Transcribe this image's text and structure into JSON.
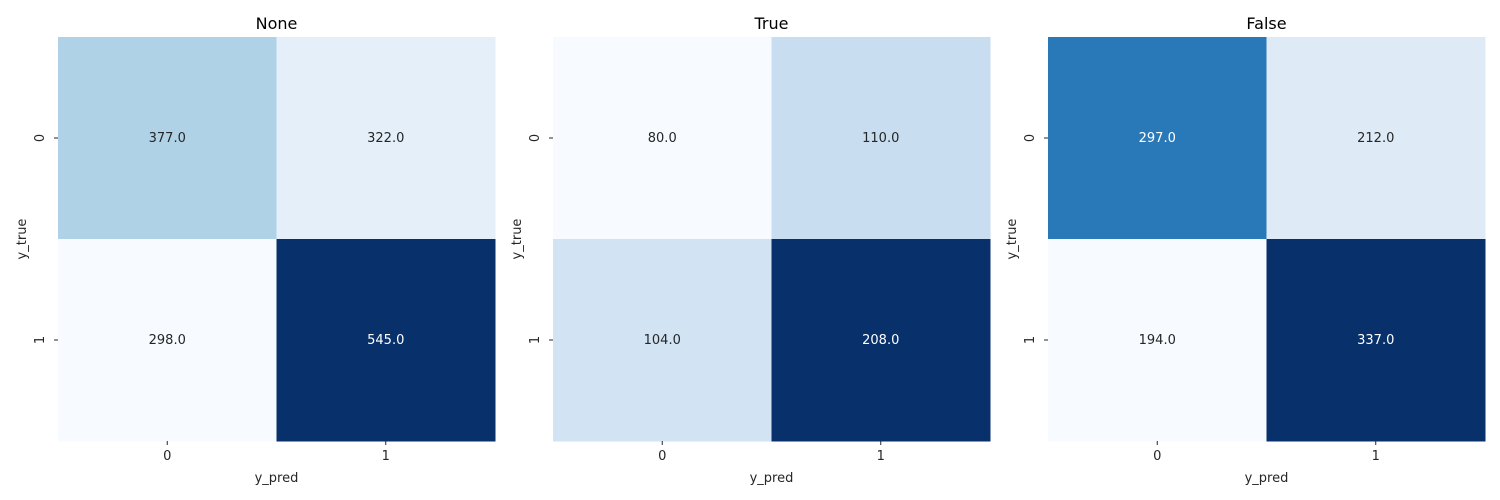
{
  "chart_data": [
    {
      "type": "heatmap",
      "title": "None",
      "xlabel": "y_pred",
      "ylabel": "y_true",
      "x_categories": [
        "0",
        "1"
      ],
      "y_categories": [
        "0",
        "1"
      ],
      "values": [
        [
          377.0,
          322.0
        ],
        [
          298.0,
          545.0
        ]
      ],
      "labels": [
        [
          "377.0",
          "322.0"
        ],
        [
          "298.0",
          "545.0"
        ]
      ],
      "colormap": "Blues",
      "colorbar": false
    },
    {
      "type": "heatmap",
      "title": "True",
      "xlabel": "y_pred",
      "ylabel": "y_true",
      "x_categories": [
        "0",
        "1"
      ],
      "y_categories": [
        "0",
        "1"
      ],
      "values": [
        [
          80.0,
          110.0
        ],
        [
          104.0,
          208.0
        ]
      ],
      "labels": [
        [
          "80.0",
          "110.0"
        ],
        [
          "104.0",
          "208.0"
        ]
      ],
      "colormap": "Blues",
      "colorbar": false
    },
    {
      "type": "heatmap",
      "title": "False",
      "xlabel": "y_pred",
      "ylabel": "y_true",
      "x_categories": [
        "0",
        "1"
      ],
      "y_categories": [
        "0",
        "1"
      ],
      "values": [
        [
          297.0,
          212.0
        ],
        [
          194.0,
          337.0
        ]
      ],
      "labels": [
        [
          "297.0",
          "212.0"
        ],
        [
          "194.0",
          "337.0"
        ]
      ],
      "colormap": "Blues",
      "colorbar": false
    }
  ]
}
